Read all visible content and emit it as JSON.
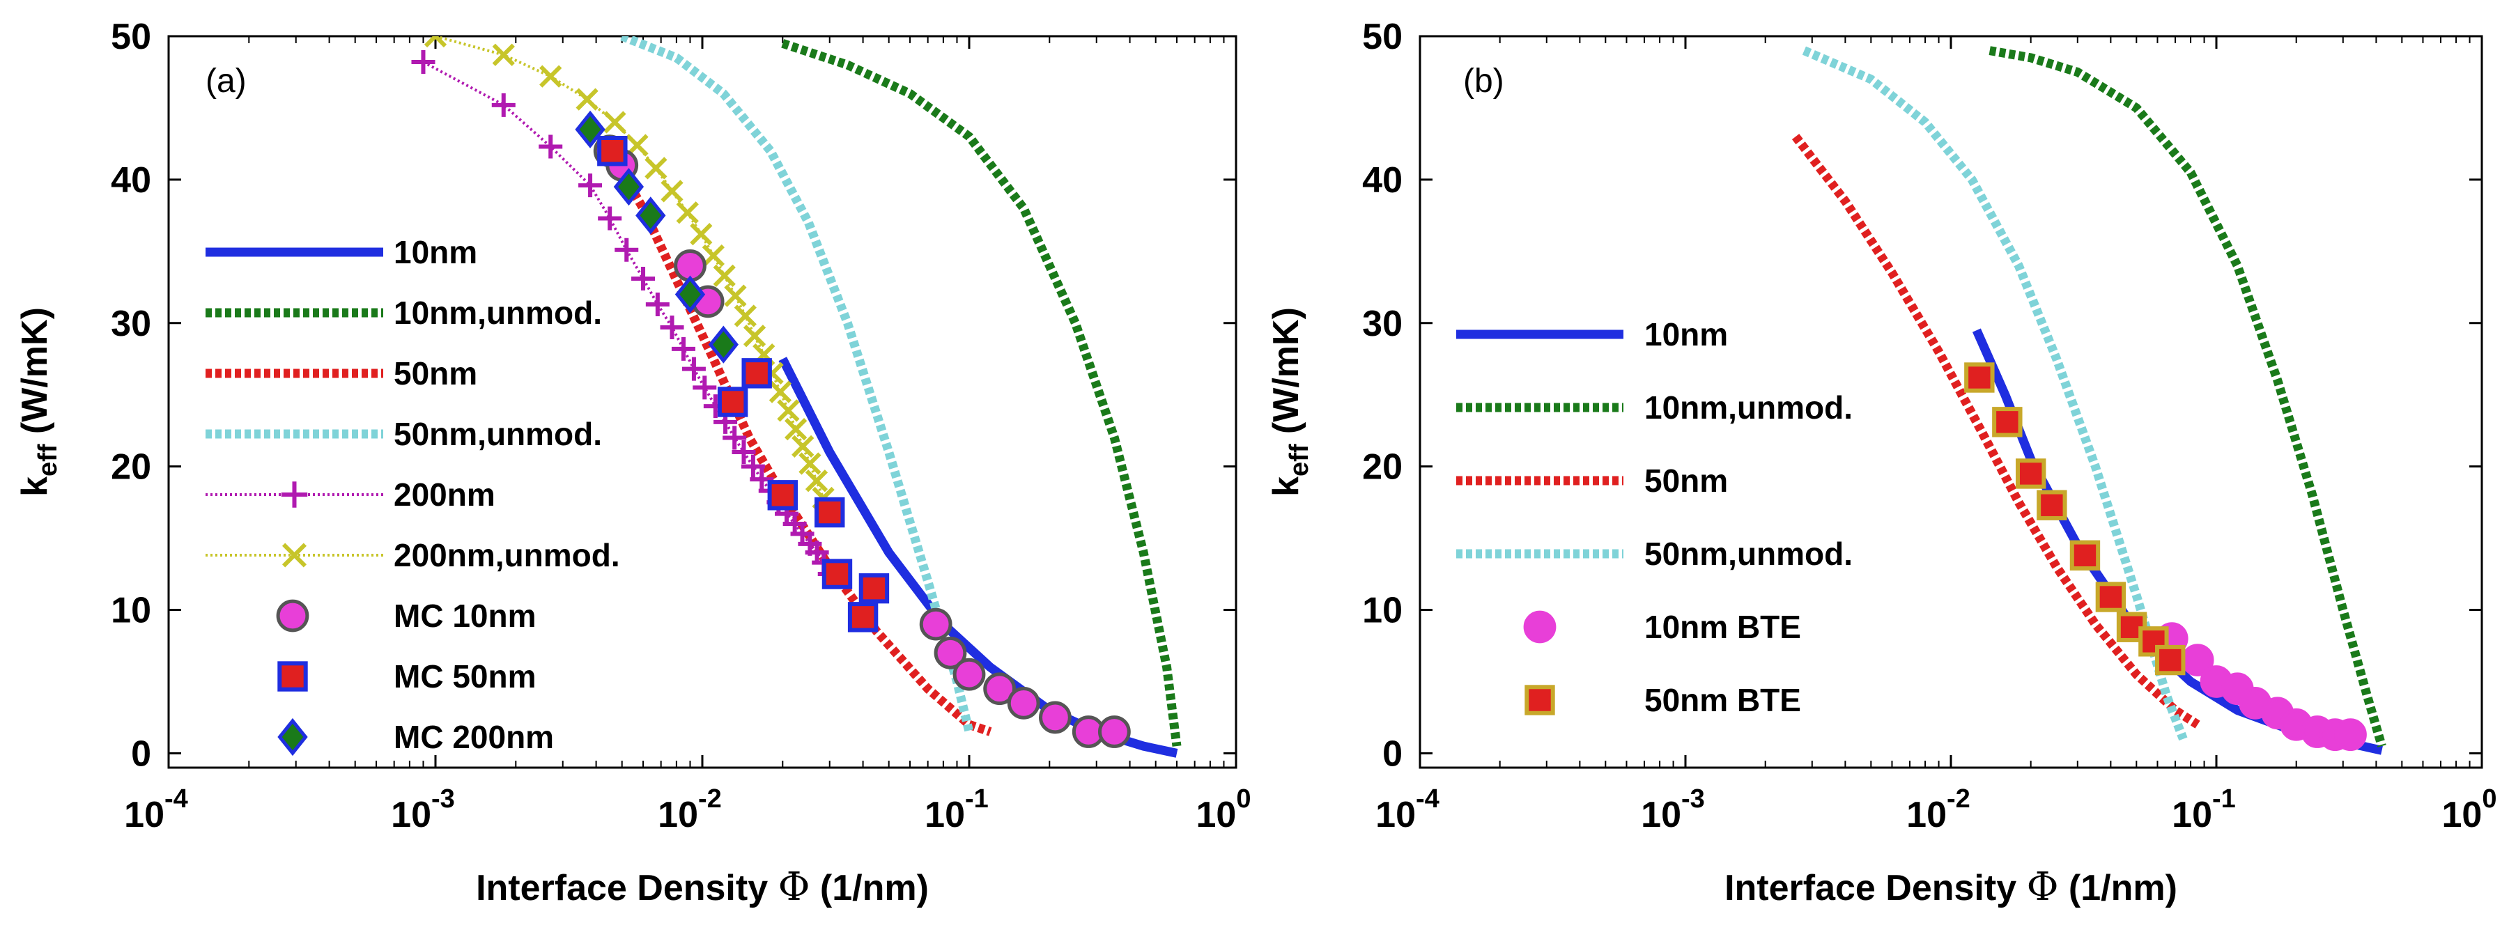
{
  "chart_data": [
    {
      "type": "line",
      "panel_label": "(a)",
      "xlabel_prefix": "Interface Density ",
      "xlabel_symbol": "Φ",
      "xlabel_suffix": " (1/nm)",
      "ylabel_main": "k",
      "ylabel_sub": "eff",
      "ylabel_unit": " (W/mK)",
      "xscale": "log",
      "xlim": [
        0.0001,
        1
      ],
      "ylim": [
        -1,
        50
      ],
      "xticks": [
        {
          "value": 0.0001,
          "base": "10",
          "exp": "-4"
        },
        {
          "value": 0.001,
          "base": "10",
          "exp": "-3"
        },
        {
          "value": 0.01,
          "base": "10",
          "exp": "-2"
        },
        {
          "value": 0.1,
          "base": "10",
          "exp": "-1"
        },
        {
          "value": 1,
          "base": "10",
          "exp": "0"
        }
      ],
      "yticks": [
        "0",
        "10",
        "20",
        "30",
        "40",
        "50"
      ],
      "legend_position": "left",
      "series": [
        {
          "name": "10nm",
          "kind": "line",
          "color": "#1f2ee0",
          "style": "solid",
          "x": [
            0.02,
            0.03,
            0.05,
            0.08,
            0.12,
            0.2,
            0.3,
            0.45,
            0.6
          ],
          "y": [
            27.5,
            21,
            14,
            9,
            6,
            3,
            1.5,
            0.5,
            0
          ]
        },
        {
          "name": "10nm,unmod.",
          "kind": "line",
          "color": "#1a7a1a",
          "style": "dashed",
          "x": [
            0.02,
            0.035,
            0.06,
            0.1,
            0.16,
            0.25,
            0.35,
            0.45,
            0.55,
            0.6
          ],
          "y": [
            49.5,
            48,
            46,
            43,
            38,
            30,
            22,
            14,
            6,
            0.5
          ]
        },
        {
          "name": "50nm",
          "kind": "line",
          "color": "#e02020",
          "style": "dashed",
          "x": [
            0.0045,
            0.006,
            0.008,
            0.011,
            0.015,
            0.02,
            0.03,
            0.045,
            0.07,
            0.1,
            0.12
          ],
          "y": [
            42,
            38,
            33,
            27.5,
            22,
            18,
            13,
            8.5,
            4.5,
            2,
            1.5
          ]
        },
        {
          "name": "50nm,unmod.",
          "kind": "line",
          "color": "#7fd3d8",
          "style": "dashed",
          "x": [
            0.005,
            0.008,
            0.012,
            0.018,
            0.025,
            0.035,
            0.05,
            0.07,
            0.09,
            0.1
          ],
          "y": [
            50,
            48.5,
            46,
            42,
            37,
            30,
            21,
            12,
            5,
            1.5
          ]
        },
        {
          "name": "200nm",
          "kind": "line+marker",
          "color": "#b01ab0",
          "style": "dotted",
          "marker": "plus",
          "x": [
            0.0009,
            0.0018,
            0.0027,
            0.0038,
            0.0045,
            0.0052,
            0.006,
            0.0068,
            0.0077,
            0.0085,
            0.0093,
            0.0102,
            0.0112,
            0.0122,
            0.0132,
            0.0143,
            0.0155,
            0.0167,
            0.018,
            0.0193,
            0.0207,
            0.0222,
            0.0237,
            0.0253,
            0.0269,
            0.0285,
            0.03
          ],
          "y": [
            48.2,
            45.2,
            42.3,
            39.6,
            37.3,
            35.1,
            33.1,
            31.3,
            29.7,
            28.2,
            26.8,
            25.5,
            24.2,
            23.1,
            22.0,
            21.0,
            20.0,
            19.1,
            18.3,
            17.5,
            16.7,
            16.0,
            15.3,
            14.6,
            14.0,
            13.3,
            12.5
          ]
        },
        {
          "name": "200nm,unmod.",
          "kind": "line+marker",
          "color": "#c7c52a",
          "style": "dotted",
          "marker": "x",
          "x": [
            0.001,
            0.0018,
            0.0027,
            0.0037,
            0.0047,
            0.0057,
            0.0067,
            0.0077,
            0.0088,
            0.0099,
            0.011,
            0.0121,
            0.0133,
            0.0145,
            0.0157,
            0.017,
            0.0183,
            0.0196,
            0.021,
            0.0224,
            0.0238,
            0.0253,
            0.0268,
            0.0284,
            0.03
          ],
          "y": [
            50,
            48.7,
            47.2,
            45.6,
            44,
            42.4,
            40.8,
            39.2,
            37.7,
            36.2,
            34.7,
            33.3,
            31.9,
            30.5,
            29.1,
            27.8,
            26.5,
            25.2,
            23.9,
            22.6,
            21.4,
            20.2,
            19,
            17.8,
            16.6
          ]
        },
        {
          "name": "MC 10nm",
          "kind": "marker",
          "color": "#e83fd8",
          "edge": "#555555",
          "marker": "circle",
          "x": [
            0.0045,
            0.005,
            0.009,
            0.0105,
            0.075,
            0.085,
            0.1,
            0.13,
            0.16,
            0.21,
            0.28,
            0.35
          ],
          "y": [
            42,
            41,
            34,
            31.5,
            9,
            7,
            5.5,
            4.5,
            3.5,
            2.5,
            1.5,
            1.5
          ]
        },
        {
          "name": "MC 50nm",
          "kind": "marker",
          "color": "#e02020",
          "edge": "#1f2ee0",
          "marker": "square",
          "x": [
            0.0046,
            0.013,
            0.016,
            0.02,
            0.03,
            0.032,
            0.04,
            0.044
          ],
          "y": [
            42,
            24.5,
            26.5,
            18,
            16.8,
            12.5,
            9.5,
            11.5
          ]
        },
        {
          "name": "MC 200nm",
          "kind": "marker",
          "color": "#1a7a1a",
          "edge": "#1f2ee0",
          "marker": "diamond",
          "x": [
            0.0038,
            0.0053,
            0.0064,
            0.009,
            0.012
          ],
          "y": [
            43.5,
            39.5,
            37.5,
            32,
            28.5
          ]
        }
      ]
    },
    {
      "type": "line",
      "panel_label": "(b)",
      "xlabel_prefix": "Interface Density ",
      "xlabel_symbol": "Φ",
      "xlabel_suffix": " (1/nm)",
      "ylabel_main": "k",
      "ylabel_sub": "eff",
      "ylabel_unit": " (W/mK)",
      "xscale": "log",
      "xlim": [
        0.0001,
        1
      ],
      "ylim": [
        -1,
        50
      ],
      "xticks": [
        {
          "value": 0.0001,
          "base": "10",
          "exp": "-4"
        },
        {
          "value": 0.001,
          "base": "10",
          "exp": "-3"
        },
        {
          "value": 0.01,
          "base": "10",
          "exp": "-2"
        },
        {
          "value": 0.1,
          "base": "10",
          "exp": "-1"
        },
        {
          "value": 1,
          "base": "10",
          "exp": "0"
        }
      ],
      "yticks": [
        "0",
        "10",
        "20",
        "30",
        "40",
        "50"
      ],
      "legend_position": "left",
      "series": [
        {
          "name": "10nm",
          "kind": "line",
          "color": "#1f2ee0",
          "style": "solid",
          "x": [
            0.0125,
            0.016,
            0.02,
            0.03,
            0.05,
            0.08,
            0.12,
            0.2,
            0.3,
            0.42
          ],
          "y": [
            29.5,
            25,
            20.5,
            14.5,
            8.5,
            5,
            3,
            1.5,
            0.8,
            0.2
          ]
        },
        {
          "name": "10nm,unmod.",
          "kind": "line",
          "color": "#1a7a1a",
          "style": "dashed",
          "x": [
            0.014,
            0.02,
            0.03,
            0.05,
            0.08,
            0.12,
            0.17,
            0.23,
            0.3,
            0.37,
            0.42
          ],
          "y": [
            49,
            48.5,
            47.5,
            45,
            40.5,
            34,
            26,
            18,
            10,
            4,
            0.5
          ]
        },
        {
          "name": "50nm",
          "kind": "line",
          "color": "#e02020",
          "style": "dashed",
          "x": [
            0.0026,
            0.004,
            0.006,
            0.009,
            0.013,
            0.018,
            0.025,
            0.035,
            0.05,
            0.07,
            0.085
          ],
          "y": [
            43,
            38.5,
            33.5,
            28,
            22.5,
            17.5,
            13,
            9,
            5.5,
            3,
            2
          ]
        },
        {
          "name": "50nm,unmod.",
          "kind": "line",
          "color": "#7fd3d8",
          "style": "dashed",
          "x": [
            0.0028,
            0.005,
            0.008,
            0.012,
            0.018,
            0.025,
            0.035,
            0.05,
            0.065,
            0.075
          ],
          "y": [
            49,
            47,
            44,
            40,
            34,
            27.5,
            20,
            11,
            4,
            1
          ]
        },
        {
          "name": "10nm BTE",
          "kind": "marker",
          "color": "#e83fd8",
          "edge": "#e83fd8",
          "marker": "circle",
          "x": [
            0.068,
            0.085,
            0.1,
            0.12,
            0.14,
            0.17,
            0.2,
            0.24,
            0.28,
            0.32
          ],
          "y": [
            8,
            6.5,
            5,
            4.5,
            3.5,
            2.8,
            2,
            1.5,
            1.3,
            1.3
          ]
        },
        {
          "name": "50nm BTE",
          "kind": "marker",
          "color": "#e02020",
          "edge": "#c8a82a",
          "marker": "square",
          "x": [
            0.0128,
            0.0163,
            0.02,
            0.024,
            0.032,
            0.04,
            0.048,
            0.058,
            0.067
          ],
          "y": [
            26.2,
            23.1,
            19.5,
            17.3,
            13.8,
            10.9,
            8.8,
            7.8,
            6.5
          ]
        }
      ]
    }
  ]
}
